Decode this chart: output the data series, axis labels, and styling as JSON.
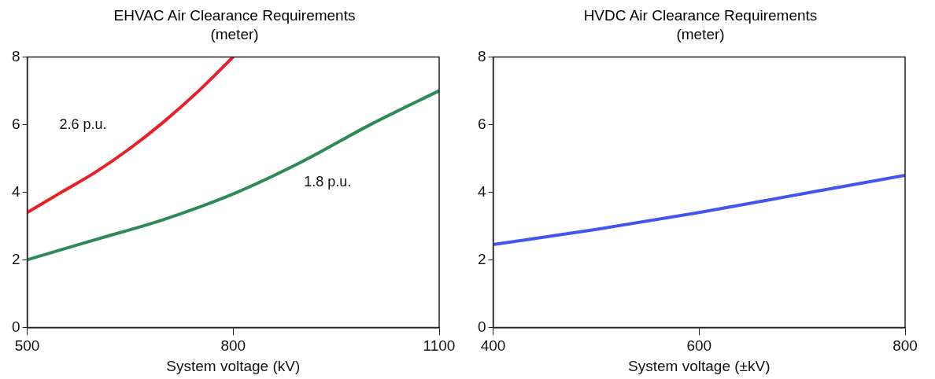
{
  "chart_data": [
    {
      "type": "line",
      "title": "EHVAC Air Clearance Requirements (meter)",
      "xlabel": "System voltage (kV)",
      "xlim": [
        500,
        1100
      ],
      "xticks": [
        500,
        800,
        1100
      ],
      "ylim": [
        0,
        8
      ],
      "yticks": [
        0,
        2,
        4,
        6,
        8
      ],
      "grid": false,
      "legend": false,
      "marker": "none",
      "line_style": "solid",
      "series": [
        {
          "name": "2.6 p.u.",
          "color": "#e8202a",
          "x": [
            500,
            550,
            600,
            650,
            700,
            750,
            800
          ],
          "values": [
            3.4,
            4.0,
            4.6,
            5.3,
            6.1,
            7.0,
            8.0
          ]
        },
        {
          "name": "1.8 p.u.",
          "color": "#2e8b57",
          "x": [
            500,
            600,
            700,
            800,
            900,
            1000,
            1100
          ],
          "values": [
            2.0,
            2.6,
            3.2,
            3.95,
            4.9,
            6.0,
            7.0
          ]
        }
      ]
    },
    {
      "type": "line",
      "title": "HVDC Air Clearance Requirements (meter)",
      "xlabel": "System voltage (±kV)",
      "xlim": [
        400,
        800
      ],
      "xticks": [
        400,
        600,
        800
      ],
      "ylim": [
        0,
        8
      ],
      "yticks": [
        0,
        2,
        4,
        6,
        8
      ],
      "grid": false,
      "legend": false,
      "marker": "none",
      "line_style": "solid",
      "series": [
        {
          "color": "#4455ee",
          "x": [
            400,
            500,
            600,
            700,
            800
          ],
          "values": [
            2.45,
            2.9,
            3.4,
            3.95,
            4.5
          ]
        }
      ]
    }
  ]
}
